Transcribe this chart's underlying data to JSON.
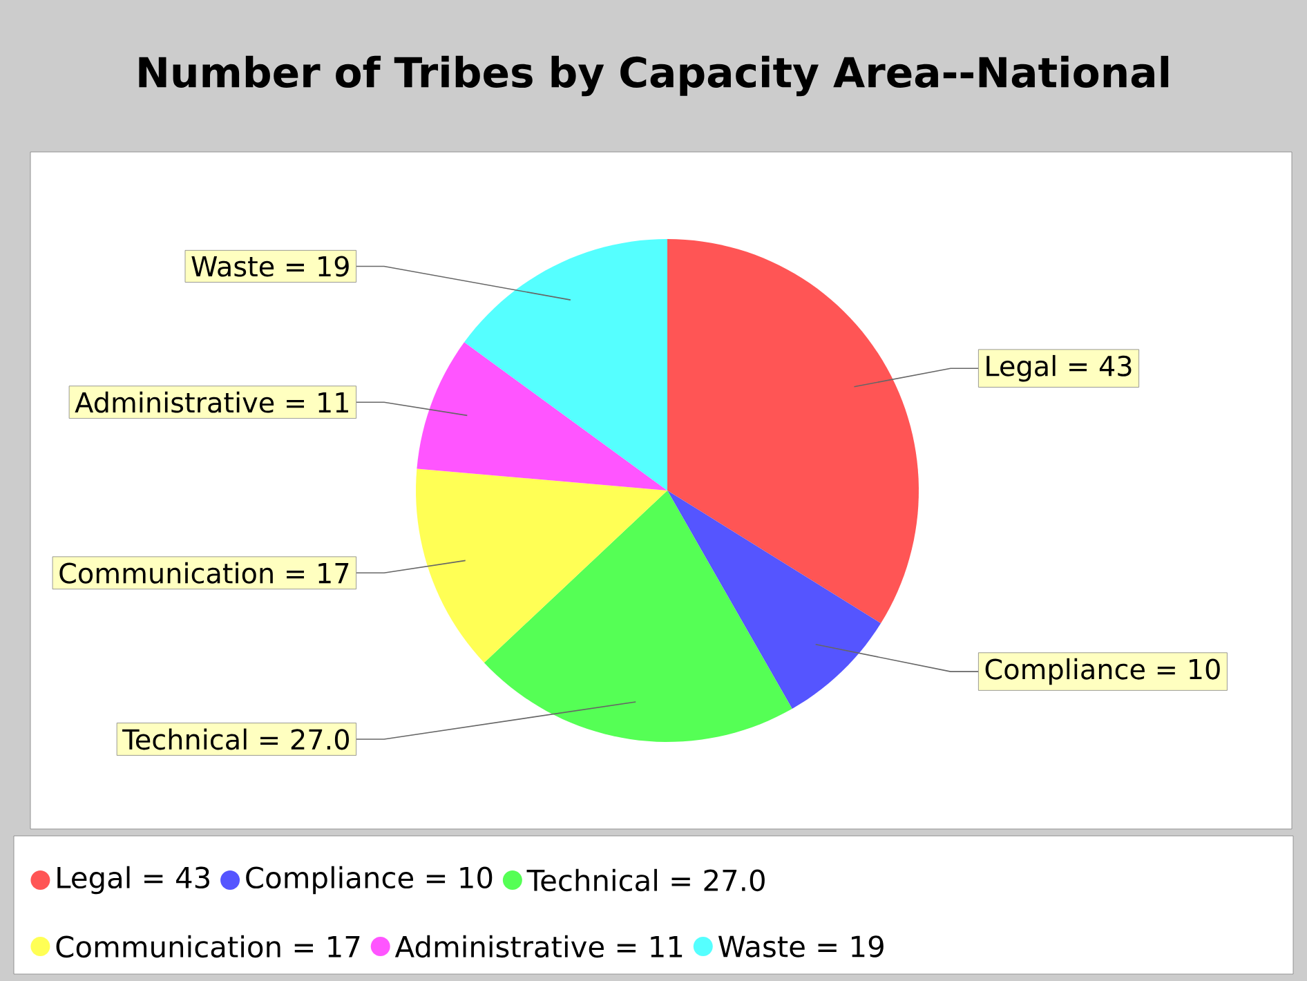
{
  "chart_data": {
    "type": "pie",
    "title": "Number of Tribes by Capacity Area--National",
    "categories": [
      "Legal = 43",
      "Compliance = 10",
      "Technical = 27.0",
      "Communication = 17",
      "Administrative = 11",
      "Waste = 19"
    ],
    "values": [
      43,
      10,
      27.0,
      17,
      11,
      19
    ],
    "value_labels": [
      "Legal = 43",
      "Compliance = 10",
      "Technical = 27.0",
      "Communication = 17",
      "Administrative = 11",
      "Waste = 19"
    ],
    "colors": [
      "#ff5555",
      "#5555ff",
      "#55ff55",
      "#ffff55",
      "#ff55ff",
      "#55ffff"
    ],
    "legend": "bottom"
  }
}
